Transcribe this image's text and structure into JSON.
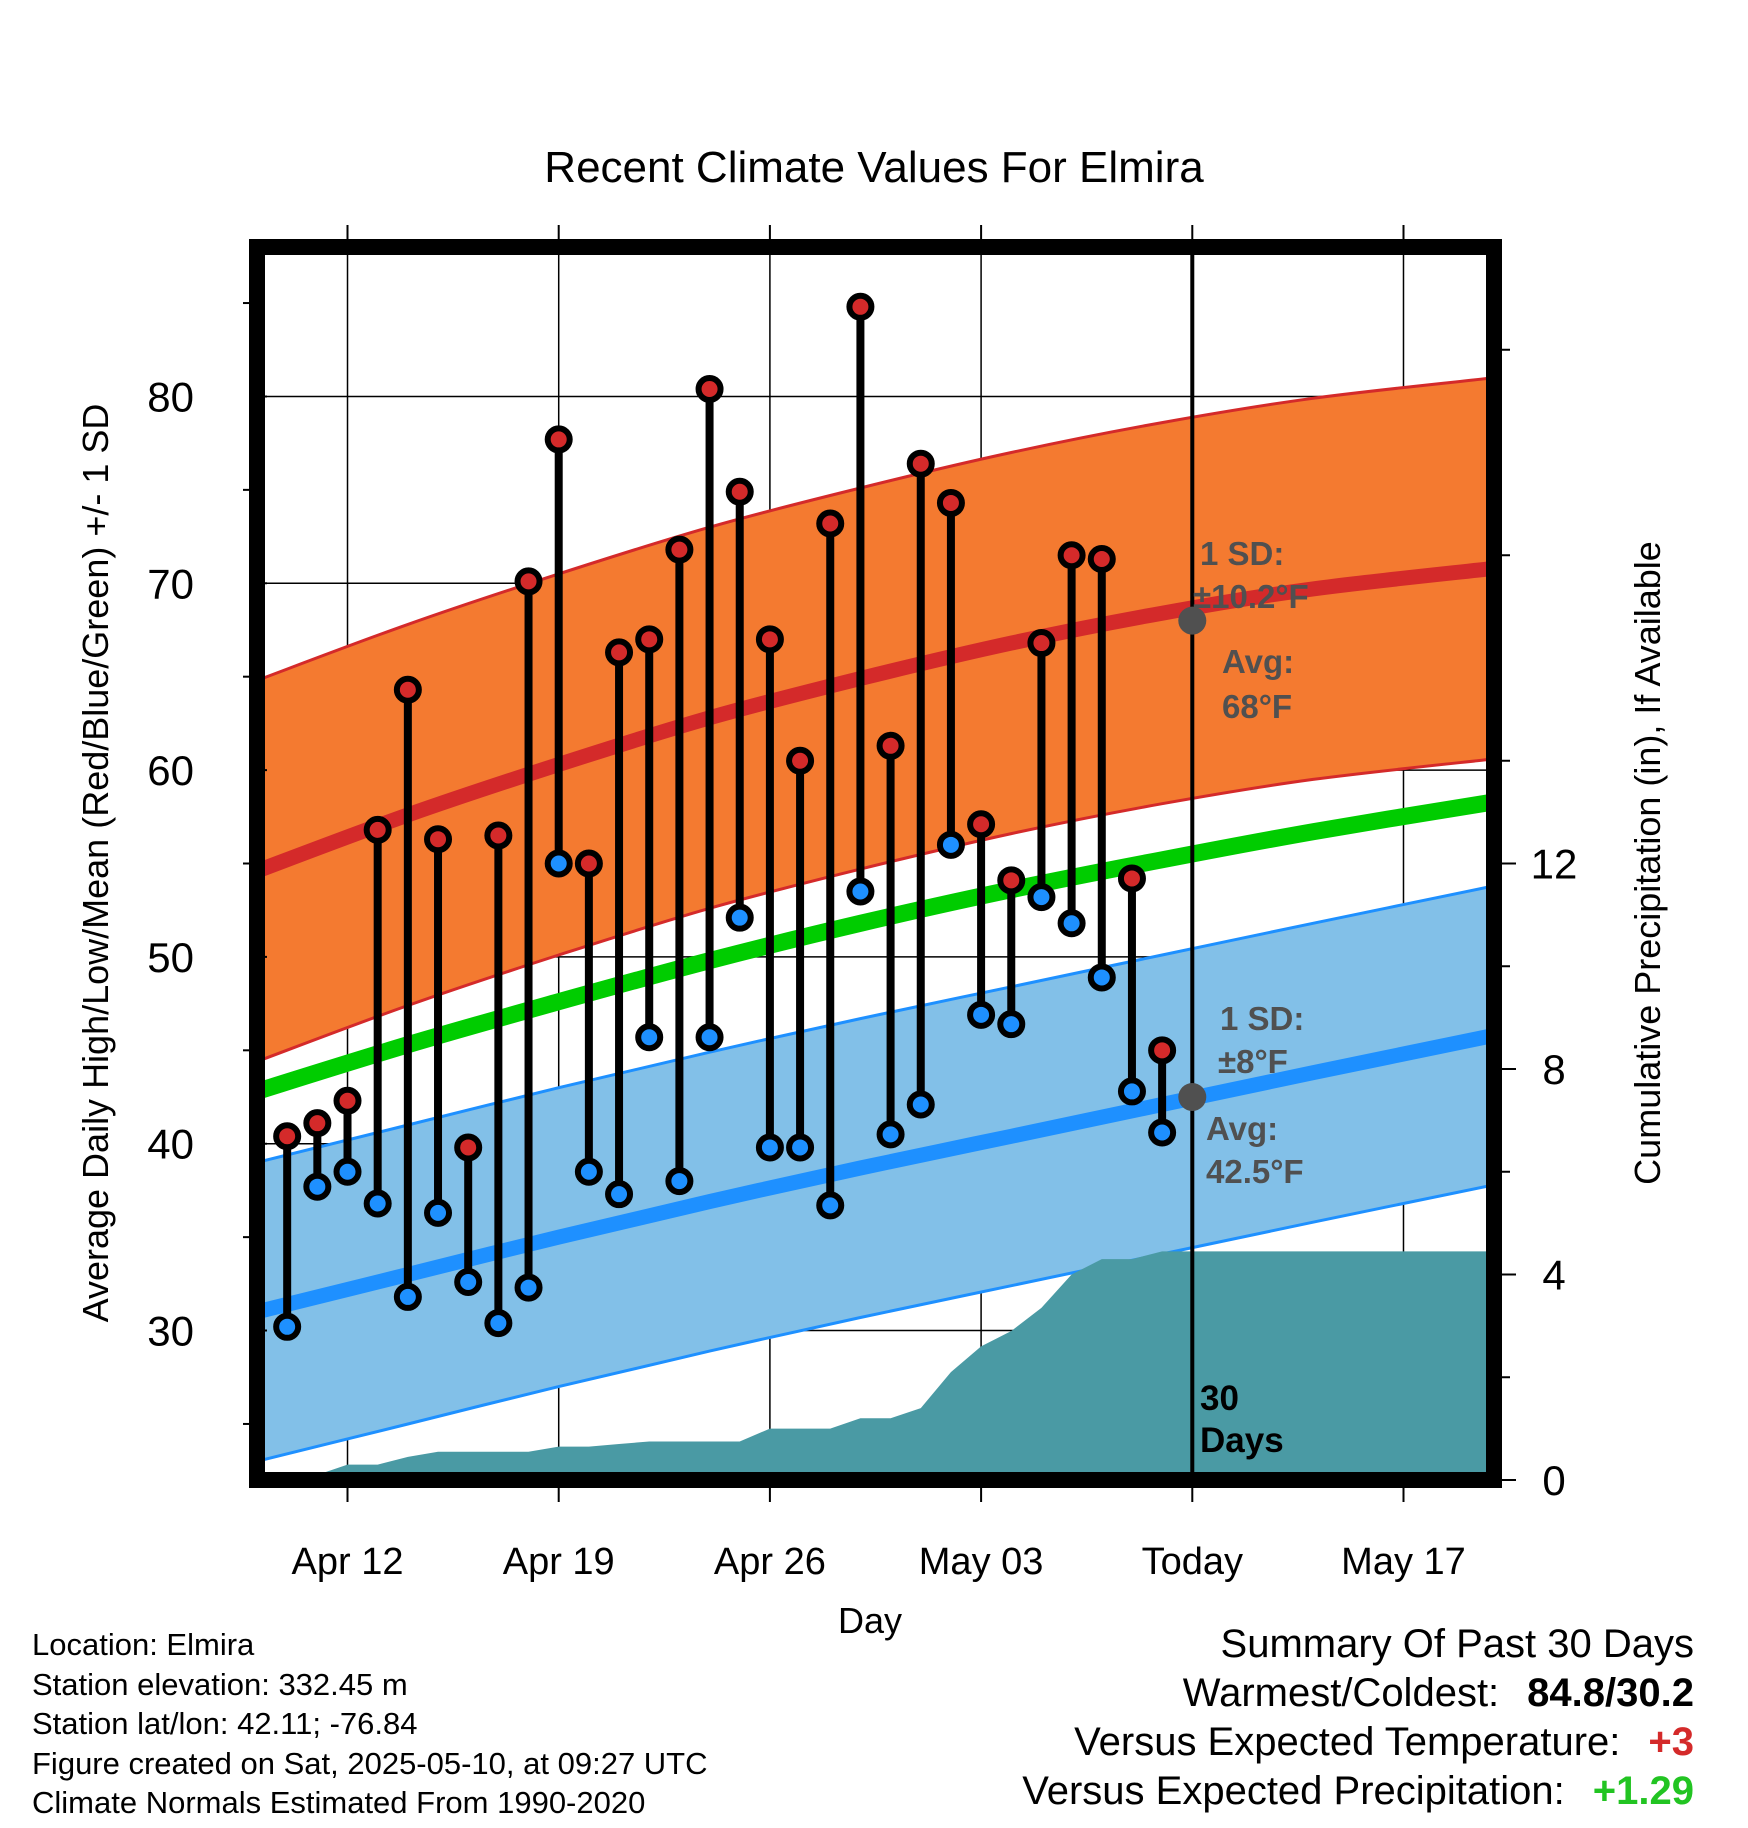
{
  "chart_data": {
    "type": "line",
    "title": "Recent Climate Values For Elmira",
    "xlabel": "Day",
    "ylabel": "Average Daily High/Low/Mean (Red/Blue/Green) +/- 1 SD",
    "y2label": "Cumulative Precipitation (in), If Available",
    "ylim": [
      22,
      88
    ],
    "y2lim": [
      0,
      24
    ],
    "yticks": [
      30,
      40,
      50,
      60,
      70,
      80
    ],
    "y2ticks": [
      0,
      4,
      8,
      12
    ],
    "xlim": [
      "2025-04-09",
      "2025-05-20"
    ],
    "xticks": [
      {
        "date": "2025-04-12",
        "label": "Apr 12"
      },
      {
        "date": "2025-04-19",
        "label": "Apr 19"
      },
      {
        "date": "2025-04-26",
        "label": "Apr 26"
      },
      {
        "date": "2025-05-03",
        "label": "May 03"
      },
      {
        "date": "2025-05-10",
        "label": "Today"
      },
      {
        "date": "2025-05-17",
        "label": "May 17"
      }
    ],
    "grid": true,
    "today": "2025-05-10",
    "today_label": "30 Days",
    "daily": {
      "dates": [
        "2025-04-10",
        "2025-04-11",
        "2025-04-12",
        "2025-04-13",
        "2025-04-14",
        "2025-04-15",
        "2025-04-16",
        "2025-04-17",
        "2025-04-18",
        "2025-04-19",
        "2025-04-20",
        "2025-04-21",
        "2025-04-22",
        "2025-04-23",
        "2025-04-24",
        "2025-04-25",
        "2025-04-26",
        "2025-04-27",
        "2025-04-28",
        "2025-04-29",
        "2025-04-30",
        "2025-05-01",
        "2025-05-02",
        "2025-05-03",
        "2025-05-04",
        "2025-05-05",
        "2025-05-06",
        "2025-05-07",
        "2025-05-08",
        "2025-05-09"
      ],
      "highs": [
        40.4,
        41.1,
        42.3,
        56.8,
        64.3,
        56.3,
        39.8,
        56.5,
        70.1,
        77.7,
        55.0,
        66.3,
        67.0,
        71.8,
        80.4,
        74.9,
        67.0,
        60.5,
        73.2,
        84.8,
        61.3,
        76.4,
        74.3,
        57.1,
        54.1,
        66.8,
        71.5,
        71.3,
        54.2,
        45.0
      ],
      "lows": [
        30.2,
        37.7,
        38.5,
        36.8,
        31.8,
        36.3,
        32.6,
        30.4,
        32.3,
        55.0,
        38.5,
        37.3,
        45.7,
        38.0,
        45.7,
        52.1,
        39.8,
        39.8,
        36.7,
        53.5,
        40.5,
        42.1,
        56.0,
        46.9,
        46.4,
        53.2,
        51.8,
        48.9,
        42.8,
        40.6
      ]
    },
    "normals": {
      "dates": [
        "2025-04-09",
        "2025-04-14",
        "2025-04-19",
        "2025-04-24",
        "2025-04-29",
        "2025-05-04",
        "2025-05-09",
        "2025-05-14",
        "2025-05-20"
      ],
      "high_mean": [
        54.6,
        57.6,
        60.3,
        62.8,
        64.9,
        66.8,
        68.4,
        69.7,
        70.8
      ],
      "low_mean": [
        31.0,
        33.0,
        35.0,
        36.9,
        38.7,
        40.4,
        42.1,
        43.8,
        45.8
      ],
      "daily_mean": [
        42.8,
        45.3,
        47.6,
        49.8,
        51.8,
        53.6,
        55.2,
        56.7,
        58.3
      ],
      "high_sd": 10.2,
      "low_sd": 8
    },
    "precip": {
      "dates": [
        "2025-04-09",
        "2025-04-11",
        "2025-04-12",
        "2025-04-13",
        "2025-04-14",
        "2025-04-15",
        "2025-04-17",
        "2025-04-18",
        "2025-04-19",
        "2025-04-20",
        "2025-04-21",
        "2025-04-22",
        "2025-04-23",
        "2025-04-24",
        "2025-04-25",
        "2025-04-26",
        "2025-04-27",
        "2025-04-28",
        "2025-04-29",
        "2025-04-30",
        "2025-05-01",
        "2025-05-02",
        "2025-05-03",
        "2025-05-04",
        "2025-05-05",
        "2025-05-06",
        "2025-05-07",
        "2025-05-08",
        "2025-05-09",
        "2025-05-10",
        "2025-05-20"
      ],
      "cumulative": [
        0.0,
        0.1,
        0.3,
        0.3,
        0.45,
        0.55,
        0.55,
        0.55,
        0.65,
        0.65,
        0.7,
        0.75,
        0.75,
        0.75,
        0.75,
        1.0,
        1.0,
        1.0,
        1.2,
        1.2,
        1.4,
        2.1,
        2.6,
        2.9,
        3.35,
        4.0,
        4.3,
        4.3,
        4.45,
        4.45,
        4.45
      ]
    },
    "annotations": {
      "high_sd_label": "1 SD:",
      "high_sd_value": "±10.2°F",
      "high_avg_label": "Avg:",
      "high_avg_value": "68°F",
      "low_sd_label": "1 SD:",
      "low_sd_value": "±8°F",
      "low_avg_label": "Avg:",
      "low_avg_value": "42.5°F",
      "high_avg_point": 68,
      "low_avg_point": 42.5
    },
    "colors": {
      "high_band": "#f47a30",
      "high_line": "#d42a2a",
      "low_band": "#82c0e8",
      "low_line": "#1e90ff",
      "mean_line": "#00cc00",
      "precip": "#4a9aa4",
      "high_marker": "#d42a2a",
      "low_marker": "#1e90ff",
      "annotation": "#505050"
    }
  },
  "info": {
    "location": "Location: Elmira",
    "elevation": "Station elevation: 332.45 m",
    "latlon": "Station lat/lon: 42.11; -76.84",
    "created": "Figure created on Sat, 2025-05-10, at 09:27 UTC",
    "normals": "Climate Normals Estimated From 1990-2020"
  },
  "summary": {
    "title": "Summary Of Past 30 Days",
    "warmest_label": "Warmest/Coldest:",
    "warmest_value": "84.8/30.2",
    "temp_label": "Versus Expected Temperature:",
    "temp_value": "+3",
    "precip_label": "Versus Expected Precipitation:",
    "precip_value": "+1.29"
  }
}
